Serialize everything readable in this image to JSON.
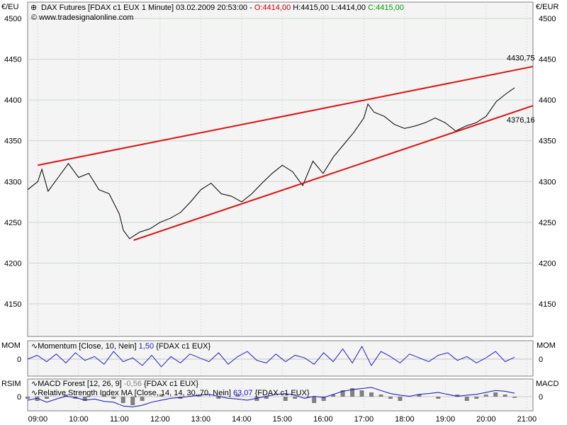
{
  "header": {
    "currency_left": "€/EU",
    "currency_right": "€/EUR",
    "title_prefix": "DAX Futures [FDAX c1 EUX  1 Minute] 03.02.2009 20:53:00 - ",
    "open": "O:4414,00",
    "high_low": " H:4415,00 L:4414,00 ",
    "close": "C:4415,00",
    "copyright": "© www.tradesignalonline.com"
  },
  "colors": {
    "price": "#000000",
    "trendline": "#e01010",
    "open": "#d00000",
    "close": "#00a000",
    "indicator_blue": "#2020c0",
    "rsi_line": "#1010c0",
    "histogram": "#808080",
    "grid": "#c8c8c8",
    "panel_bg": "#f4f4f4"
  },
  "chart_data": {
    "type": "line",
    "title": "DAX Futures [FDAX c1 EUX  1 Minute] 03.02.2009 20:53:00",
    "ylim": [
      4110,
      4520
    ],
    "yticks": [
      4500,
      4450,
      4400,
      4350,
      4300,
      4250,
      4200,
      4150
    ],
    "xticks": [
      "09:00",
      "10:00",
      "11:00",
      "12:00",
      "13:00",
      "14:00",
      "15:00",
      "16:00",
      "17:00",
      "18:00",
      "19:00",
      "20:00",
      "21:00"
    ],
    "x_range_hours": [
      8.75,
      21.15
    ],
    "series": [
      {
        "x": [
          8.75,
          9.0,
          9.1,
          9.25,
          9.5,
          9.75,
          10.0,
          10.25,
          10.5,
          10.75,
          11.0,
          11.1,
          11.25,
          11.5,
          11.75,
          12.0,
          12.25,
          12.5,
          12.75,
          13.0,
          13.25,
          13.5,
          13.75,
          14.0,
          14.25,
          14.5,
          14.75,
          15.0,
          15.25,
          15.5,
          15.75,
          16.0,
          16.25,
          16.5,
          16.75,
          17.0,
          17.1,
          17.25,
          17.5,
          17.75,
          18.0,
          18.25,
          18.5,
          18.75,
          19.0,
          19.25,
          19.5,
          19.75,
          20.0,
          20.25,
          20.5,
          20.7
        ],
        "values": [
          4290,
          4300,
          4315,
          4288,
          4305,
          4322,
          4305,
          4310,
          4290,
          4285,
          4260,
          4240,
          4230,
          4238,
          4242,
          4250,
          4255,
          4262,
          4275,
          4290,
          4298,
          4285,
          4282,
          4275,
          4285,
          4298,
          4310,
          4320,
          4312,
          4295,
          4325,
          4310,
          4330,
          4345,
          4360,
          4378,
          4395,
          4385,
          4380,
          4370,
          4365,
          4368,
          4372,
          4378,
          4372,
          4362,
          4368,
          4372,
          4380,
          4398,
          4408,
          4415
        ]
      }
    ],
    "trendlines": [
      {
        "label": "4430,75",
        "x": [
          9.0,
          21.15
        ],
        "values": [
          4320,
          4441
        ]
      },
      {
        "label": "4376,16",
        "x": [
          11.35,
          21.15
        ],
        "values": [
          4228,
          4393
        ]
      }
    ]
  },
  "mom_panel": {
    "side_label": "MOM",
    "zero_label": "0",
    "legend_name": "Momentum [Close, 10, Nein] ",
    "legend_value": "1,50",
    "legend_symbol": " {FDAX c1 EUX}",
    "values": [
      0,
      3,
      -2,
      4,
      -3,
      5,
      -1,
      2,
      -4,
      6,
      -2,
      1,
      -5,
      3,
      -6,
      2,
      -3,
      4,
      1,
      -2,
      5,
      -4,
      2,
      6,
      -1,
      -3,
      4,
      -2,
      3,
      1,
      -4,
      5,
      -2,
      8,
      -3,
      10,
      -5,
      6,
      2,
      -3,
      4,
      1,
      -2,
      3,
      5,
      -1,
      2,
      -3,
      1,
      6,
      -2,
      1.5
    ]
  },
  "rsi_panel": {
    "side_label_left": "RSIM",
    "side_label_right": "MACD",
    "zero_label": "0",
    "macd_name": "MACD Forest [12, 26, 9] ",
    "macd_value": "-0,56",
    "macd_symbol": " {FDAX c1 EUX}",
    "rsi_name": "Relative Strength Index MA [Close, 14, 14, 30, 70, Nein] ",
    "rsi_value": "63,07",
    "rsi_symbol": " {FDAX c1 EUX}",
    "macd_hist": [
      -1,
      -2,
      -1,
      0,
      1,
      -1,
      -2,
      0,
      1,
      -1,
      -3,
      -4,
      -2,
      0,
      1,
      0,
      -1,
      0,
      1,
      0,
      -1,
      0,
      1,
      0,
      -2,
      -1,
      0,
      -2,
      -1,
      0,
      -3,
      -2,
      1,
      3,
      4,
      3,
      2,
      1,
      -1,
      -2,
      0,
      1,
      0,
      -1,
      0,
      1,
      -2,
      -1,
      1,
      2,
      1,
      -0.56
    ],
    "rsi_values": [
      45,
      50,
      40,
      48,
      55,
      52,
      45,
      48,
      42,
      40,
      30,
      28,
      32,
      40,
      45,
      50,
      52,
      55,
      58,
      60,
      55,
      50,
      48,
      45,
      50,
      55,
      60,
      62,
      58,
      50,
      55,
      52,
      60,
      68,
      72,
      75,
      78,
      70,
      62,
      58,
      55,
      60,
      62,
      65,
      60,
      55,
      58,
      60,
      65,
      70,
      68,
      63.07
    ]
  }
}
